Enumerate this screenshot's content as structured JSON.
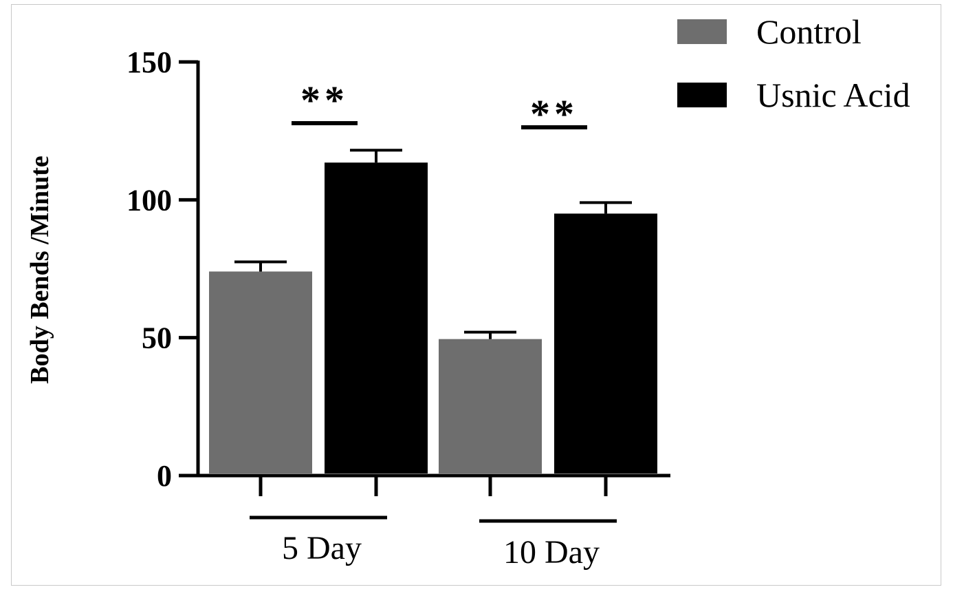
{
  "chart_data": {
    "type": "bar",
    "ylabel": "Body Bends /Minute",
    "ylim": [
      0,
      150
    ],
    "yticks": [
      "0",
      "50",
      "100",
      "150"
    ],
    "groups": [
      "5 Day",
      "10 Day"
    ],
    "series": [
      {
        "name": "Control",
        "values": [
          74,
          49.5
        ],
        "errors": [
          3.5,
          2.5
        ],
        "color": "#6e6e6e"
      },
      {
        "name": "Usnic Acid",
        "values": [
          113.5,
          95
        ],
        "errors": [
          4.5,
          4
        ],
        "color": "#000000"
      }
    ],
    "significance": [
      "**",
      "**"
    ],
    "legend_position": "top-right",
    "grid": false
  }
}
